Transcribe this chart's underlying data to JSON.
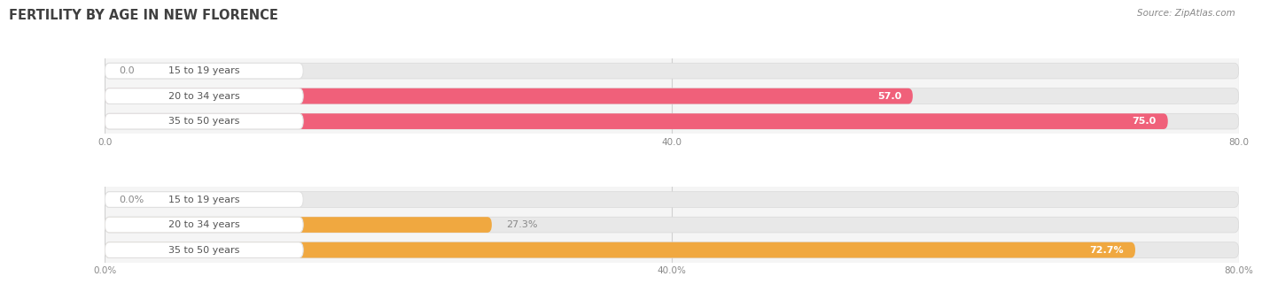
{
  "title": "FERTILITY BY AGE IN NEW FLORENCE",
  "source": "Source: ZipAtlas.com",
  "top_chart": {
    "categories": [
      "15 to 19 years",
      "20 to 34 years",
      "35 to 50 years"
    ],
    "values": [
      0.0,
      57.0,
      75.0
    ],
    "xlim": [
      0,
      80
    ],
    "xticks": [
      0.0,
      40.0,
      80.0
    ],
    "xtick_labels": [
      "0.0",
      "40.0",
      "80.0"
    ],
    "bar_color_main": "#f0607a",
    "bar_color_light": "#f5a0b8",
    "label_inside_color": "#ffffff",
    "label_outside_color": "#888888",
    "bar_bg_color": "#e8e8e8"
  },
  "bottom_chart": {
    "categories": [
      "15 to 19 years",
      "20 to 34 years",
      "35 to 50 years"
    ],
    "values": [
      0.0,
      27.3,
      72.7
    ],
    "xlim": [
      0,
      80
    ],
    "xticks": [
      0.0,
      40.0,
      80.0
    ],
    "xtick_labels": [
      "0.0%",
      "40.0%",
      "80.0%"
    ],
    "bar_color_main": "#f0a840",
    "bar_color_light": "#f5c880",
    "label_inside_color": "#ffffff",
    "label_outside_color": "#888888",
    "bar_bg_color": "#e8e8e8"
  },
  "title_color": "#404040",
  "title_fontsize": 10.5,
  "source_fontsize": 7.5,
  "source_color": "#888888",
  "category_fontsize": 8,
  "value_fontsize": 8,
  "fig_bg_color": "#ffffff",
  "chart_bg_color": "#f5f5f5",
  "label_pill_color": "#ffffff",
  "label_pill_edge": "#e0e0e0",
  "label_text_color": "#555555"
}
